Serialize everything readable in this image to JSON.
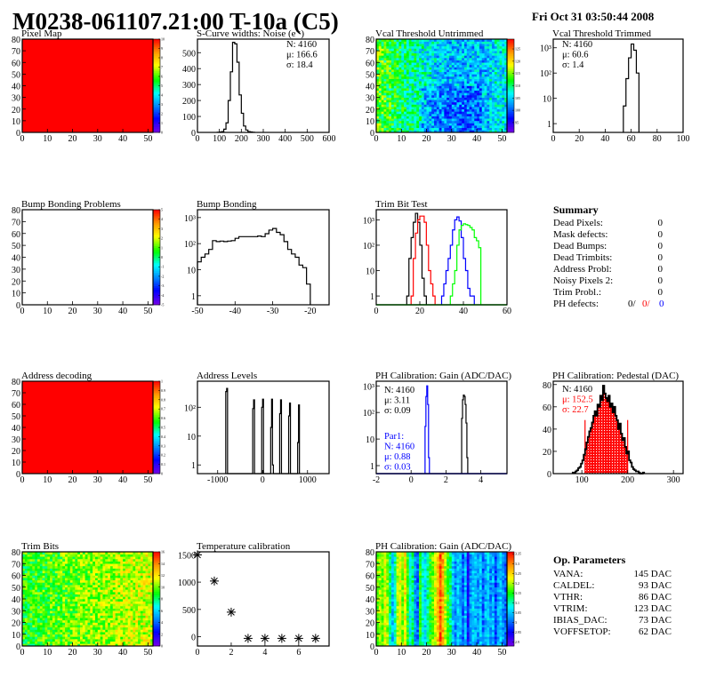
{
  "header": {
    "title": "M0238-061107.21:00 T-10a (C5)",
    "date": "Fri Oct 31 03:50:44 2008"
  },
  "summary": {
    "title": "Summary",
    "rows": [
      {
        "label": "Dead Pixels:",
        "value": "0"
      },
      {
        "label": "Mask defects:",
        "value": "0"
      },
      {
        "label": "Dead Bumps:",
        "value": "0"
      },
      {
        "label": "Dead Trimbits:",
        "value": "0"
      },
      {
        "label": "Address Probl:",
        "value": "0"
      },
      {
        "label": "Noisy Pixels 2:",
        "value": "0"
      },
      {
        "label": "Trim Probl.:",
        "value": "0"
      }
    ],
    "ph_defects": {
      "label": "PH defects:",
      "values": [
        {
          "text": "0/",
          "color": "#000000"
        },
        {
          "text": "0/",
          "color": "#ff0000"
        },
        {
          "text": "0",
          "color": "#0000ff"
        }
      ]
    }
  },
  "op_parameters": {
    "title": "Op. Parameters",
    "rows": [
      {
        "label": "VANA:",
        "value": "145 DAC"
      },
      {
        "label": "CALDEL:",
        "value": "93 DAC"
      },
      {
        "label": "VTHR:",
        "value": "86 DAC"
      },
      {
        "label": "VTRIM:",
        "value": "123 DAC"
      },
      {
        "label": "IBIAS_DAC:",
        "value": "73 DAC"
      },
      {
        "label": "VOFFSETOP:",
        "value": "62 DAC"
      }
    ]
  },
  "chart_data": [
    {
      "type": "heatmap",
      "title": "Pixel Map",
      "xlim": [
        0,
        52
      ],
      "ylim": [
        0,
        80
      ],
      "zlim": [
        0,
        10
      ],
      "xticks": [
        0,
        10,
        20,
        30,
        40,
        50
      ],
      "yticks": [
        0,
        10,
        20,
        30,
        40,
        50,
        60,
        70,
        80
      ],
      "zticks": [
        0,
        1,
        2,
        3,
        4,
        5,
        6,
        7,
        8,
        9,
        10
      ],
      "fill_value": 10
    },
    {
      "type": "histogram",
      "title": "S-Curve widths: Noise (e⁻)",
      "xlim": [
        0,
        600
      ],
      "ylim": [
        0,
        585
      ],
      "logy": false,
      "xticks": [
        0,
        100,
        200,
        300,
        400,
        500,
        600
      ],
      "yticks": [
        0,
        100,
        200,
        300,
        400,
        500
      ],
      "series": [
        {
          "color": "#000000",
          "x0": 90,
          "bw": 10,
          "values": [
            1,
            2,
            5,
            20,
            60,
            200,
            380,
            565,
            555,
            440,
            235,
            120,
            40,
            15,
            5,
            3,
            1
          ]
        }
      ],
      "stats": [
        {
          "text": "N: 4160",
          "color": "#000000"
        },
        {
          "text": "μ: 166.6",
          "color": "#000000"
        },
        {
          "text": "σ: 18.4",
          "color": "#000000"
        }
      ]
    },
    {
      "type": "heatmap",
      "title": "Vcal Threshold Untrimmed",
      "xlim": [
        0,
        52
      ],
      "ylim": [
        0,
        80
      ],
      "zlim": [
        91,
        129
      ],
      "xticks": [
        0,
        10,
        20,
        30,
        40,
        50
      ],
      "yticks": [
        0,
        10,
        20,
        30,
        40,
        50,
        60,
        70,
        80
      ],
      "zticks": [
        95,
        100,
        105,
        110,
        115,
        120,
        125
      ]
    },
    {
      "type": "histogram",
      "title": "Vcal Threshold Trimmed",
      "xlim": [
        0,
        100
      ],
      "ylim": [
        0.45,
        2200
      ],
      "logy": true,
      "xticks": [
        0,
        20,
        40,
        60,
        80,
        100
      ],
      "yticks": [
        1,
        10,
        100,
        1000
      ],
      "ytick_labels": [
        "1",
        "10",
        "10²",
        "10³"
      ],
      "series": [
        {
          "color": "#000000",
          "x0": 54,
          "bw": 2,
          "values": [
            5,
            60,
            400,
            1400,
            800,
            100
          ]
        }
      ],
      "stats": [
        {
          "text": "N: 4160",
          "color": "#000000"
        },
        {
          "text": "μ: 60.6",
          "color": "#000000"
        },
        {
          "text": "σ:  1.4",
          "color": "#000000"
        }
      ]
    },
    {
      "type": "heatmap",
      "title": "Bump Bonding Problems",
      "xlim": [
        0,
        52
      ],
      "ylim": [
        0,
        80
      ],
      "zlim": [
        -5,
        5
      ],
      "xticks": [
        0,
        10,
        20,
        30,
        40,
        50
      ],
      "yticks": [
        0,
        10,
        20,
        30,
        40,
        50,
        60,
        70,
        80
      ],
      "zticks": [
        -5,
        -4,
        -3,
        -2,
        -1,
        0,
        1,
        2,
        3,
        4,
        5
      ]
    },
    {
      "type": "histogram",
      "title": "Bump Bonding",
      "xlim": [
        -50,
        -15
      ],
      "ylim": [
        0.45,
        2000
      ],
      "logy": true,
      "xticks": [
        -50,
        -40,
        -30,
        -20
      ],
      "yticks": [
        1,
        10,
        100,
        1000
      ],
      "ytick_labels": [
        "1",
        "10",
        "10²",
        "10³"
      ],
      "series": [
        {
          "color": "#000000",
          "x0": -50,
          "bw": 1,
          "values": [
            20,
            30,
            40,
            60,
            130,
            120,
            125,
            120,
            125,
            130,
            160,
            185,
            185,
            185,
            185,
            185,
            195,
            185,
            240,
            330,
            380,
            270,
            220,
            120,
            60,
            40,
            30,
            15,
            12,
            2.8
          ]
        }
      ]
    },
    {
      "type": "histogram",
      "title": "Trim Bit Test",
      "xlim": [
        0,
        60
      ],
      "ylim": [
        0.45,
        2500
      ],
      "logy": true,
      "xticks": [
        0,
        20,
        40,
        60
      ],
      "yticks": [
        1,
        10,
        100,
        1000
      ],
      "ytick_labels": [
        "1",
        "10",
        "10²",
        "10³"
      ],
      "series": [
        {
          "color": "#000000",
          "x0": 14,
          "bw": 1,
          "values": [
            1,
            30,
            200,
            800,
            1800,
            800,
            100,
            5,
            1
          ]
        },
        {
          "color": "#ff0000",
          "x0": 16,
          "bw": 1,
          "values": [
            1,
            30,
            300,
            1000,
            1400,
            1400,
            800,
            100,
            10,
            3,
            1
          ]
        },
        {
          "color": "#0000ff",
          "x0": 30,
          "bw": 1,
          "values": [
            1,
            3,
            10,
            30,
            100,
            400,
            1000,
            1300,
            900,
            200,
            30,
            10,
            2,
            1,
            1
          ]
        },
        {
          "color": "#00ff00",
          "x0": 34,
          "bw": 1,
          "values": [
            1,
            3,
            10,
            100,
            400,
            600,
            700,
            650,
            600,
            500,
            400,
            200,
            150,
            80
          ]
        }
      ]
    },
    {
      "type": "heatmap",
      "title": "Address decoding",
      "xlim": [
        0,
        52
      ],
      "ylim": [
        0,
        80
      ],
      "zlim": [
        0,
        1
      ],
      "xticks": [
        0,
        10,
        20,
        30,
        40,
        50
      ],
      "yticks": [
        0,
        10,
        20,
        30,
        40,
        50,
        60,
        70,
        80
      ],
      "zticks": [
        0,
        0.1,
        0.2,
        0.3,
        0.4,
        0.5,
        0.6,
        0.7,
        0.8,
        0.9,
        1
      ],
      "fill_value": 1
    },
    {
      "type": "histogram",
      "title": "Address Levels",
      "xlim": [
        -1450,
        1480
      ],
      "ylim": [
        0.5,
        800
      ],
      "logy": true,
      "xticks": [
        -1000,
        0,
        1000
      ],
      "yticks": [
        1,
        10,
        100
      ],
      "ytick_labels": [
        "1",
        "10",
        "10²"
      ],
      "series": [
        {
          "color": "#000000",
          "bw": 20,
          "bins": [
            [
              -820,
              350
            ],
            [
              -800,
              450
            ],
            [
              -220,
              90
            ],
            [
              -200,
              180
            ],
            [
              -20,
              100
            ],
            [
              0,
              190
            ],
            [
              180,
              20
            ],
            [
              200,
              190
            ],
            [
              220,
              1
            ],
            [
              380,
              60
            ],
            [
              400,
              180
            ],
            [
              580,
              50
            ],
            [
              600,
              140
            ],
            [
              780,
              6
            ],
            [
              800,
              120
            ]
          ]
        }
      ]
    },
    {
      "type": "histogram",
      "title": "PH Calibration: Gain (ADC/DAC)",
      "xlim": [
        -2,
        5.5
      ],
      "ylim": [
        0.5,
        1500
      ],
      "logy": true,
      "xticks": [
        -2,
        0,
        2,
        4
      ],
      "yticks": [
        1,
        10,
        100,
        1000
      ],
      "ytick_labels": [
        "1",
        "10",
        "10²",
        "10³"
      ],
      "series": [
        {
          "color": "#0000ff",
          "x0": 0.8,
          "bw": 0.05,
          "values": [
            30,
            400,
            1000,
            200,
            2
          ]
        },
        {
          "color": "#000000",
          "x0": 2.9,
          "bw": 0.05,
          "values": [
            60,
            300,
            450,
            400,
            200,
            40,
            2
          ]
        }
      ],
      "stats": [
        {
          "text": "N: 4160",
          "color": "#000000"
        },
        {
          "text": "μ: 3.11",
          "color": "#000000"
        },
        {
          "text": "σ: 0.09",
          "color": "#000000"
        }
      ],
      "stats2": [
        {
          "text": "Par1:",
          "color": "#0000ff"
        },
        {
          "text": "N: 4160",
          "color": "#0000ff"
        },
        {
          "text": "μ: 0.88",
          "color": "#0000ff"
        },
        {
          "text": "σ: 0.03",
          "color": "#0000ff"
        }
      ]
    },
    {
      "type": "histogram",
      "title": "PH Calibration: Pedestal (DAC)",
      "xlim": [
        37.6,
        321
      ],
      "ylim": [
        0,
        83
      ],
      "logy": false,
      "xticks": [
        100,
        200,
        300
      ],
      "yticks": [
        0,
        20,
        40,
        60,
        80
      ],
      "series": [
        {
          "color": "#000000",
          "x0": 80,
          "bw": 3,
          "values": [
            1,
            1,
            2,
            3,
            5,
            6,
            9,
            12,
            17,
            22,
            28,
            33,
            38,
            41,
            46,
            52,
            56,
            52,
            62,
            60,
            70,
            66,
            79,
            72,
            68,
            65,
            70,
            60,
            63,
            55,
            60,
            52,
            48,
            40,
            45,
            36,
            30,
            32,
            24,
            18,
            20,
            12,
            10,
            6,
            4,
            3,
            2,
            2,
            1,
            0,
            0,
            1
          ]
        }
      ],
      "fit": {
        "color": "#ff0000",
        "range": [
          107,
          200
        ]
      },
      "stats": [
        {
          "text": "N: 4160",
          "color": "#000000"
        },
        {
          "text": "μ: 152.5",
          "color": "#ff0000"
        },
        {
          "text": "σ: 22.7",
          "color": "#ff0000"
        }
      ]
    },
    {
      "type": "heatmap",
      "title": "Trim Bits",
      "xlim": [
        0,
        52
      ],
      "ylim": [
        0,
        80
      ],
      "zlim": [
        0,
        16
      ],
      "xticks": [
        0,
        10,
        20,
        30,
        40,
        50
      ],
      "yticks": [
        0,
        10,
        20,
        30,
        40,
        50,
        60,
        70,
        80
      ],
      "zticks": [
        0,
        2,
        4,
        6,
        8,
        10,
        12,
        14,
        16
      ]
    },
    {
      "type": "scatter",
      "title": "Temperature calibration",
      "xlim": [
        0,
        7.8
      ],
      "ylim": [
        -170,
        1555
      ],
      "xticks": [
        0,
        2,
        4,
        6
      ],
      "yticks": [
        0,
        500,
        1000,
        1500
      ],
      "points": [
        [
          0,
          1500
        ],
        [
          1,
          1020
        ],
        [
          2,
          450
        ],
        [
          3,
          -30
        ],
        [
          4,
          -30
        ],
        [
          5,
          -30
        ],
        [
          6,
          -30
        ],
        [
          7,
          -30
        ]
      ]
    },
    {
      "type": "heatmap",
      "title": "PH Calibration: Gain (ADC/DAC)",
      "xlim": [
        0,
        52
      ],
      "ylim": [
        0,
        80
      ],
      "zlim": [
        2.88,
        3.36
      ],
      "xticks": [
        0,
        10,
        20,
        30,
        40,
        50
      ],
      "yticks": [
        0,
        10,
        20,
        30,
        40,
        50,
        60,
        70,
        80
      ],
      "zticks": [
        2.9,
        2.95,
        3,
        3.05,
        3.1,
        3.15,
        3.2,
        3.25,
        3.3,
        3.35
      ]
    }
  ]
}
